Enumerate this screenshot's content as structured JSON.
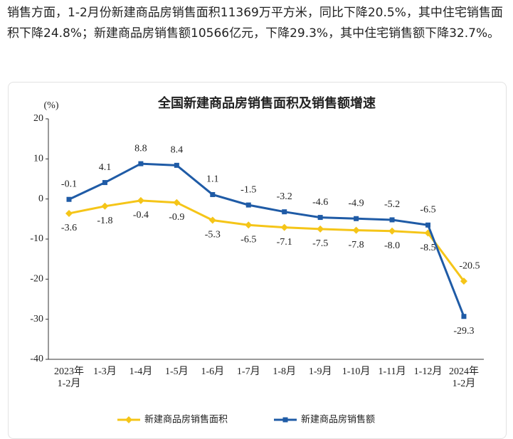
{
  "paragraph": "销售方面，1-2月份新建商品房销售面积11369万平方米，同比下降20.5%，其中住宅销售面积下降24.8%；新建商品房销售额10566亿元，下降29.3%，其中住宅销售额下降32.7%。",
  "chart_data": {
    "type": "line",
    "title": "全国新建商品房销售面积及销售额增速",
    "y_label": "(%)",
    "categories": [
      "2023年\n1-2月",
      "1-3月",
      "1-4月",
      "1-5月",
      "1-6月",
      "1-7月",
      "1-8月",
      "1-9月",
      "1-10月",
      "1-11月",
      "1-12月",
      "2024年\n1-2月"
    ],
    "series": [
      {
        "name": "新建商品房销售面积",
        "color": "#f5c518",
        "marker": "diamond",
        "values": [
          -3.6,
          -1.8,
          -0.4,
          -0.9,
          -5.3,
          -6.5,
          -7.1,
          -7.5,
          -7.8,
          -8.0,
          -8.5,
          -20.5
        ],
        "value_labels": [
          "-3.6",
          "-1.8",
          "-0.4",
          "-0.9",
          "-5.3",
          "-6.5",
          "-7.1",
          "-7.5",
          "-7.8",
          "-8.0",
          "-8.5",
          "-20.5"
        ]
      },
      {
        "name": "新建商品房销售额",
        "color": "#1f5ba6",
        "marker": "square",
        "values": [
          -0.1,
          4.1,
          8.8,
          8.4,
          1.1,
          -1.5,
          -3.2,
          -4.6,
          -4.9,
          -5.2,
          -6.5,
          -29.3
        ]
      }
    ],
    "ylim": [
      -40,
      20
    ],
    "yticks": [
      -40,
      -30,
      -20,
      -10,
      0,
      10,
      20
    ],
    "grid": false
  }
}
